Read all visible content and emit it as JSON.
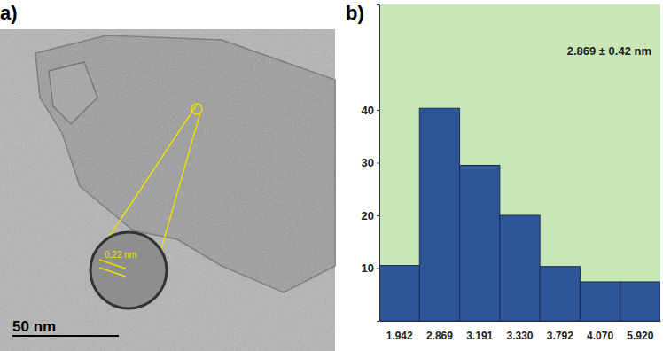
{
  "micrograph": {
    "panel_label": "a)",
    "lattice_spacing_label": "0,22 nm",
    "scale_bar_label": "50 nm"
  },
  "chart_data": {
    "type": "bar",
    "panel_label": "b)",
    "annotations": [
      "2.869 ± 0.42 nm"
    ],
    "categories": [
      "1.942",
      "2.869",
      "3.191",
      "3.330",
      "3.792",
      "4.070",
      "5.920"
    ],
    "values": [
      10.5,
      40.3,
      29.5,
      20,
      10.3,
      7.4,
      7.4
    ],
    "color": "#2d5597",
    "ylim": [
      0,
      60
    ],
    "yticks": [
      10,
      20,
      30,
      40
    ],
    "grid": false
  }
}
